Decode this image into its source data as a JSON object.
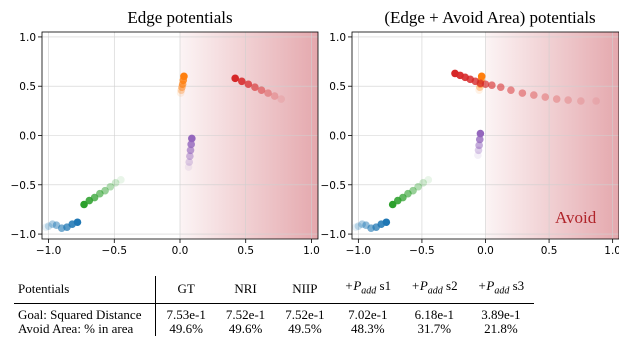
{
  "chart_data": [
    {
      "type": "scatter",
      "title": "Edge potentials",
      "xlim": [
        -1.05,
        1.05
      ],
      "ylim": [
        -1.05,
        1.05
      ],
      "xticks": [
        "−1.0",
        "−0.5",
        "0.0",
        "0.5",
        "1.0"
      ],
      "yticks": [
        "1.0",
        "0.5",
        "0.0",
        "−0.5",
        "−1.0"
      ],
      "grid": true,
      "avoid_region": {
        "x_from": 0.0,
        "x_to": 1.05,
        "color": "#c84a55"
      },
      "series": [
        {
          "color": "#1f77b4",
          "points": [
            [
              -0.78,
              -0.88
            ],
            [
              -0.82,
              -0.9
            ],
            [
              -0.86,
              -0.93
            ],
            [
              -0.9,
              -0.94
            ],
            [
              -0.94,
              -0.91
            ],
            [
              -0.97,
              -0.9
            ],
            [
              -1.0,
              -0.92
            ],
            [
              -1.02,
              -0.93
            ]
          ]
        },
        {
          "color": "#2ca02c",
          "points": [
            [
              -0.73,
              -0.7
            ],
            [
              -0.69,
              -0.66
            ],
            [
              -0.65,
              -0.63
            ],
            [
              -0.61,
              -0.59
            ],
            [
              -0.57,
              -0.56
            ],
            [
              -0.53,
              -0.52
            ],
            [
              -0.49,
              -0.48
            ],
            [
              -0.45,
              -0.45
            ]
          ]
        },
        {
          "color": "#ff7f0e",
          "points": [
            [
              0.03,
              0.6
            ],
            [
              0.025,
              0.56
            ],
            [
              0.02,
              0.52
            ],
            [
              0.015,
              0.49
            ],
            [
              0.01,
              0.46
            ],
            [
              0.005,
              0.43
            ]
          ]
        },
        {
          "color": "#9467bd",
          "points": [
            [
              0.09,
              -0.03
            ],
            [
              0.085,
              -0.09
            ],
            [
              0.08,
              -0.15
            ],
            [
              0.075,
              -0.21
            ],
            [
              0.07,
              -0.27
            ],
            [
              0.065,
              -0.32
            ]
          ]
        },
        {
          "color": "#d62728",
          "points": [
            [
              0.42,
              0.58
            ],
            [
              0.47,
              0.55
            ],
            [
              0.52,
              0.52
            ],
            [
              0.57,
              0.49
            ],
            [
              0.62,
              0.46
            ],
            [
              0.67,
              0.43
            ],
            [
              0.72,
              0.4
            ],
            [
              0.77,
              0.37
            ]
          ]
        }
      ]
    },
    {
      "type": "scatter",
      "title": "(Edge + Avoid Area) potentials",
      "xlim": [
        -1.05,
        1.05
      ],
      "ylim": [
        -1.05,
        1.05
      ],
      "xticks": [
        "−1.0",
        "−0.5",
        "0.0",
        "0.5",
        "1.0"
      ],
      "yticks": [
        "1.0",
        "0.5",
        "0.0",
        "−0.5",
        "−1.0"
      ],
      "grid": true,
      "annotation": "Avoid",
      "avoid_region": {
        "x_from": 0.0,
        "x_to": 1.05,
        "color": "#c84a55"
      },
      "series": [
        {
          "color": "#1f77b4",
          "points": [
            [
              -0.78,
              -0.88
            ],
            [
              -0.82,
              -0.9
            ],
            [
              -0.86,
              -0.93
            ],
            [
              -0.9,
              -0.94
            ],
            [
              -0.94,
              -0.91
            ],
            [
              -0.97,
              -0.9
            ],
            [
              -1.0,
              -0.92
            ],
            [
              -1.02,
              -0.93
            ]
          ]
        },
        {
          "color": "#2ca02c",
          "points": [
            [
              -0.73,
              -0.7
            ],
            [
              -0.69,
              -0.66
            ],
            [
              -0.65,
              -0.63
            ],
            [
              -0.61,
              -0.59
            ],
            [
              -0.57,
              -0.56
            ],
            [
              -0.53,
              -0.52
            ],
            [
              -0.49,
              -0.48
            ],
            [
              -0.45,
              -0.45
            ]
          ]
        },
        {
          "color": "#ff7f0e",
          "points": [
            [
              -0.03,
              0.6
            ],
            [
              -0.035,
              0.56
            ],
            [
              -0.04,
              0.52
            ],
            [
              -0.045,
              0.49
            ],
            [
              -0.05,
              0.46
            ]
          ]
        },
        {
          "color": "#9467bd",
          "points": [
            [
              -0.04,
              0.02
            ],
            [
              -0.045,
              -0.04
            ],
            [
              -0.05,
              -0.1
            ],
            [
              -0.055,
              -0.15
            ],
            [
              -0.06,
              -0.2
            ]
          ]
        },
        {
          "color": "#d62728",
          "points": [
            [
              -0.24,
              0.63
            ],
            [
              -0.2,
              0.61
            ],
            [
              -0.16,
              0.59
            ],
            [
              -0.12,
              0.57
            ],
            [
              -0.08,
              0.55
            ],
            [
              -0.04,
              0.53
            ],
            [
              0.0,
              0.52
            ],
            [
              0.05,
              0.51
            ],
            [
              0.12,
              0.49
            ],
            [
              0.2,
              0.46
            ],
            [
              0.29,
              0.43
            ],
            [
              0.38,
              0.41
            ],
            [
              0.47,
              0.39
            ],
            [
              0.56,
              0.37
            ],
            [
              0.65,
              0.36
            ],
            [
              0.75,
              0.35
            ],
            [
              0.87,
              0.35
            ]
          ]
        }
      ]
    }
  ],
  "results_table": {
    "headers": [
      "Potentials",
      "GT",
      "NRI",
      "NIIP",
      "+P_add s1",
      "+P_add s2",
      "+P_add s3"
    ],
    "header_prefix": "+P",
    "header_sub": "add",
    "header_suffixes": [
      "s1",
      "s2",
      "s3"
    ],
    "rows": [
      {
        "label": "Goal: Squared Distance",
        "values": [
          "7.53e-1",
          "7.52e-1",
          "7.52e-1",
          "7.02e-1",
          "6.18e-1",
          "3.89e-1"
        ]
      },
      {
        "label": "Avoid Area: % in area",
        "values": [
          "49.6%",
          "49.6%",
          "49.5%",
          "48.3%",
          "31.7%",
          "21.8%"
        ]
      }
    ]
  }
}
